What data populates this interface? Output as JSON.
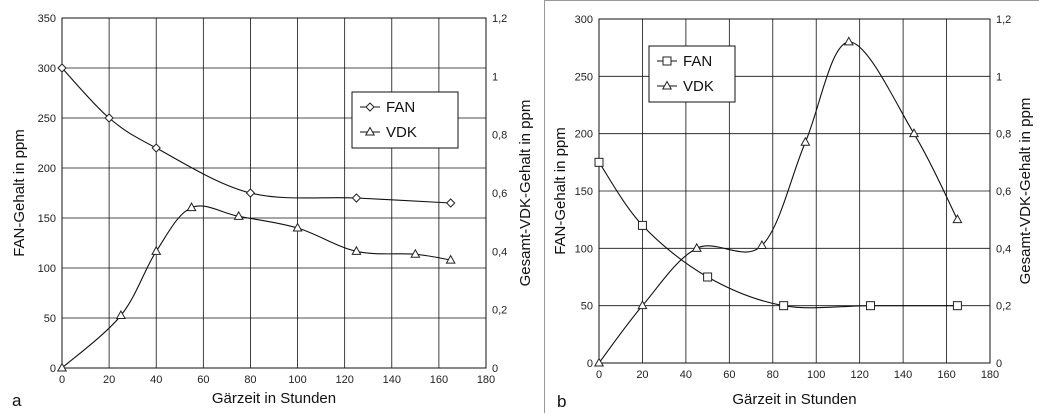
{
  "chart_data": [
    {
      "panel_label": "a",
      "type": "line",
      "xlabel": "Gärzeit in Stunden",
      "ylabel": "FAN-Gehalt in ppm",
      "y2label": "Gesamt-VDK-Gehalt in ppm",
      "xlim": [
        0,
        180
      ],
      "ylim": [
        0,
        350
      ],
      "y2lim": [
        0,
        1.2
      ],
      "xticks": [
        "0",
        "20",
        "40",
        "60",
        "80",
        "100",
        "120",
        "140",
        "160",
        "180"
      ],
      "yticks": [
        "0",
        "50",
        "100",
        "150",
        "200",
        "250",
        "300",
        "350"
      ],
      "y2ticks": [
        "0",
        "0,2",
        "0,4",
        "0,6",
        "0,8",
        "1",
        "1,2"
      ],
      "grid": true,
      "legend_position": "right-center",
      "series": [
        {
          "name": "FAN",
          "axis": "left",
          "marker": "diamond",
          "x": [
            0,
            20,
            40,
            80,
            125,
            165
          ],
          "y": [
            300,
            250,
            220,
            175,
            170,
            165
          ]
        },
        {
          "name": "VDK",
          "axis": "right",
          "marker": "triangle",
          "x": [
            0,
            25,
            40,
            55,
            75,
            100,
            125,
            150,
            165
          ],
          "y": [
            0,
            0.18,
            0.4,
            0.55,
            0.52,
            0.48,
            0.4,
            0.39,
            0.37
          ]
        }
      ]
    },
    {
      "panel_label": "b",
      "type": "line",
      "xlabel": "Gärzeit in Stunden",
      "ylabel": "FAN-Gehalt in ppm",
      "y2label": "Gesamt-VDK-Gehalt in ppm",
      "xlim": [
        0,
        180
      ],
      "ylim": [
        0,
        300
      ],
      "y2lim": [
        0,
        1.2
      ],
      "xticks": [
        "0",
        "20",
        "40",
        "60",
        "80",
        "100",
        "120",
        "140",
        "160",
        "180"
      ],
      "yticks": [
        "0",
        "50",
        "100",
        "150",
        "200",
        "250",
        "300"
      ],
      "y2ticks": [
        "0",
        "0,2",
        "0,4",
        "0,6",
        "0,8",
        "1",
        "1,2"
      ],
      "grid": true,
      "legend_position": "top-left",
      "series": [
        {
          "name": "FAN",
          "axis": "left",
          "marker": "square",
          "x": [
            0,
            20,
            50,
            85,
            125,
            165
          ],
          "y": [
            175,
            120,
            75,
            50,
            50,
            50
          ]
        },
        {
          "name": "VDK",
          "axis": "right",
          "marker": "triangle",
          "x": [
            0,
            20,
            45,
            75,
            95,
            115,
            145,
            165
          ],
          "y": [
            0,
            0.2,
            0.4,
            0.41,
            0.77,
            1.12,
            0.8,
            0.5
          ]
        }
      ]
    }
  ]
}
